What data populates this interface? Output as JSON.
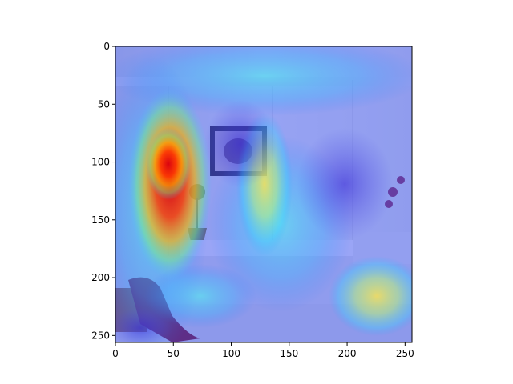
{
  "figure": {
    "description_type": "heatmap overlay on photograph",
    "background_color": "#ffffff",
    "axis_color": "#000000"
  },
  "chart_data": {
    "type": "heatmap",
    "title": "",
    "xlabel": "",
    "ylabel": "",
    "xlim": [
      0,
      256
    ],
    "ylim": [
      256,
      0
    ],
    "x_ticks": [
      0,
      50,
      100,
      150,
      200,
      250
    ],
    "y_ticks": [
      0,
      50,
      100,
      150,
      200,
      250
    ],
    "x_tick_labels": [
      "0",
      "50",
      "100",
      "150",
      "200",
      "250"
    ],
    "y_tick_labels": [
      "0",
      "50",
      "100",
      "150",
      "200",
      "250"
    ],
    "grid": false,
    "colormap": "jet"
  }
}
